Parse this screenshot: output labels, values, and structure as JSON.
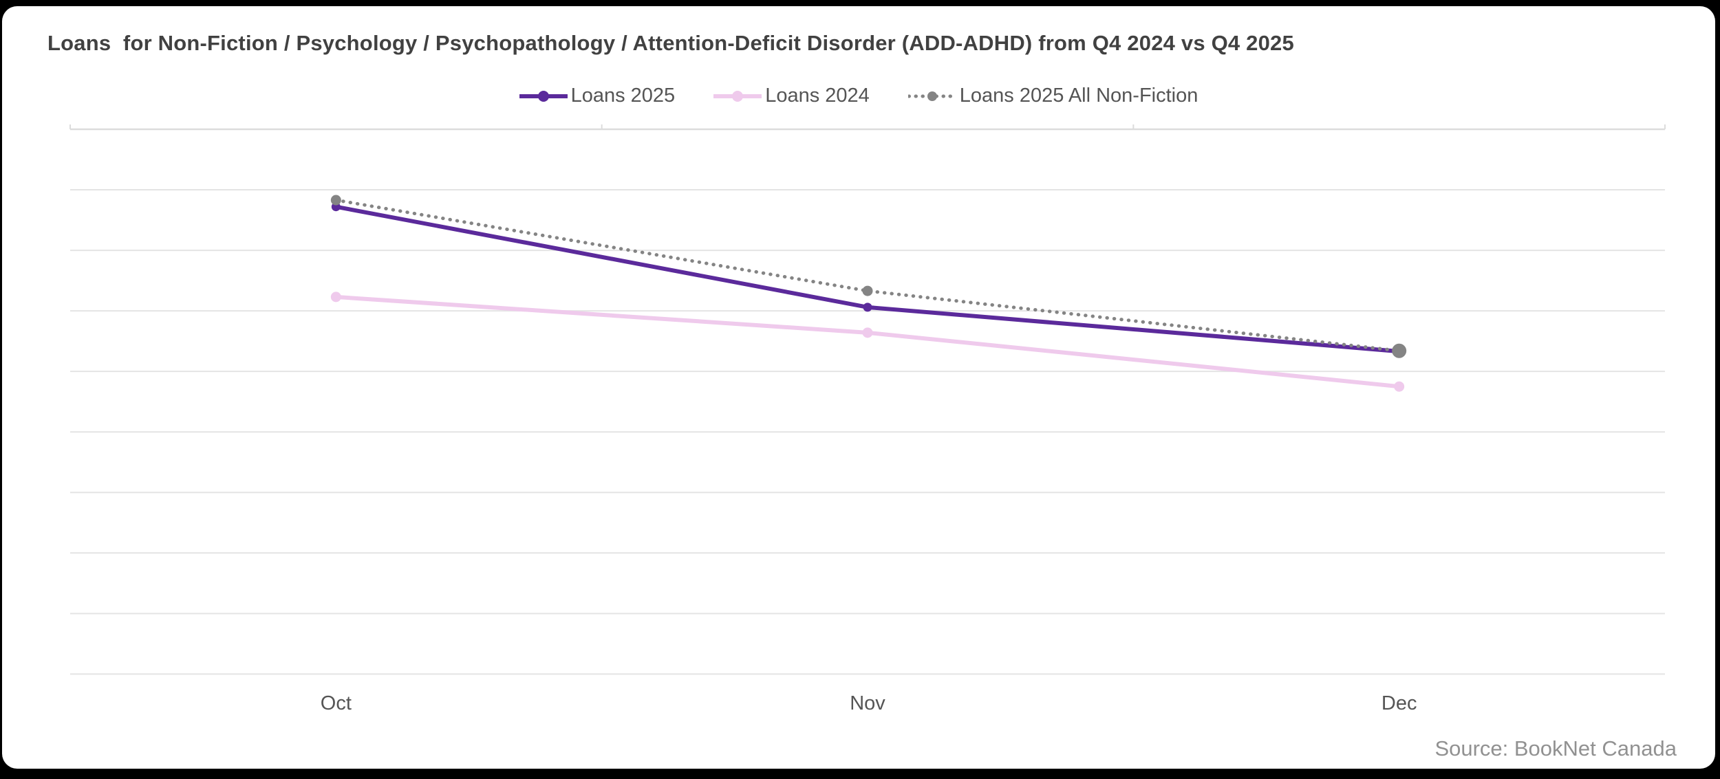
{
  "page": {
    "background_color": "#000000",
    "card_color": "#ffffff"
  },
  "header": {
    "title": "Loans  for Non-Fiction / Psychology / Psychopathology / Attention-Deficit Disorder (ADD-ADHD) from Q4 2024 vs Q4 2025",
    "title_color": "#414141"
  },
  "source": {
    "label": "Source: BookNet Canada",
    "color": "#919191"
  },
  "chart_data": {
    "type": "line",
    "title": "Loans  for Non-Fiction / Psychology / Psychopathology / Attention-Deficit Disorder (ADD-ADHD) from Q4 2024 vs Q4 2025",
    "categories": [
      "Oct",
      "Nov",
      "Dec"
    ],
    "series": [
      {
        "name": "Loans 2025",
        "color": "#5b2a9b",
        "line_style": "solid",
        "values": [
          7.72,
          6.06,
          5.33
        ]
      },
      {
        "name": "Loans 2024",
        "color": "#efcaec",
        "line_style": "solid",
        "values": [
          6.23,
          5.64,
          4.75
        ]
      },
      {
        "name": "Loans 2025 All Non-Fiction",
        "color": "#848484",
        "line_style": "dotted",
        "values": [
          7.83,
          6.33,
          5.34
        ]
      }
    ],
    "xlabel": "",
    "ylabel": "",
    "ylim": [
      0,
      9
    ],
    "y_axis_labels_visible": false,
    "gridline_step": 1,
    "grid": "horizontal",
    "legend_position": "top-center",
    "axis_label_color": "#555555",
    "gridline_color": "#e4e4e4",
    "note": "y-axis has no tick labels; values estimated in gridline units (bottom gridline = 0, one unit per gridline)"
  }
}
